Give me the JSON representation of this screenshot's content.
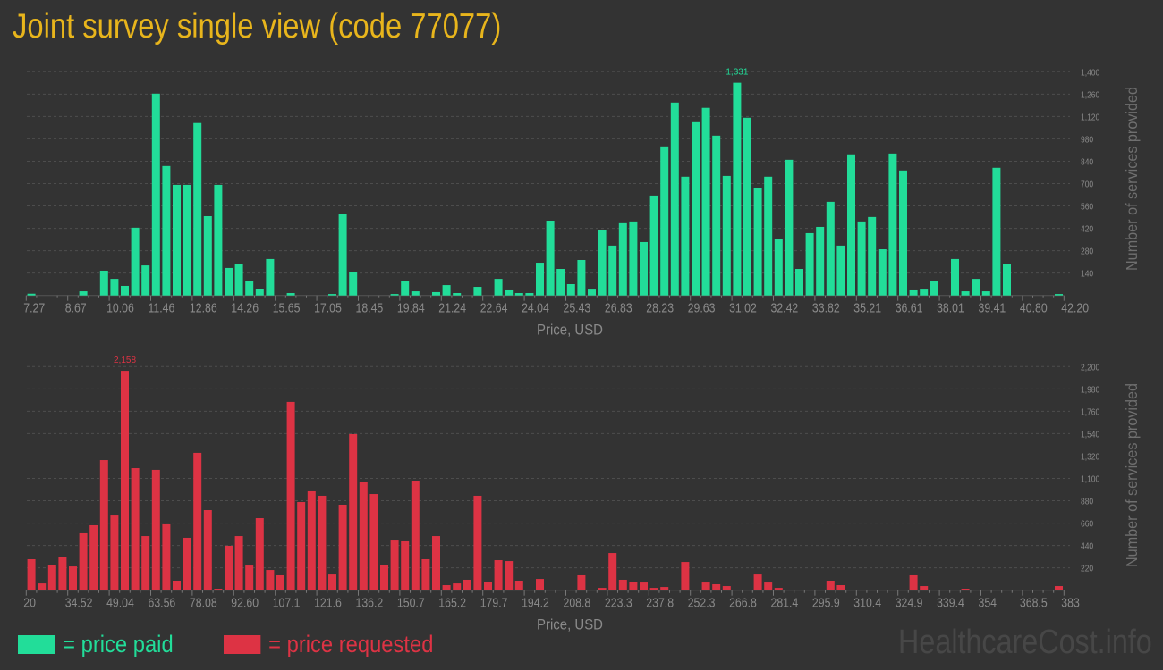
{
  "title": "Joint survey single view (code 77077)",
  "legend": [
    {
      "label": "= price paid",
      "color": "#22dd99"
    },
    {
      "label": "= price requested",
      "color": "#dd3344"
    }
  ],
  "watermark": "HealthcareCost.info",
  "chart_data": [
    {
      "type": "bar",
      "color": "#22dd99",
      "xlabel": "Price, USD",
      "ylabel": "Number of services provided",
      "xlim": [
        7.27,
        42.2
      ],
      "ylim": [
        0,
        1400
      ],
      "grid": true,
      "x_tick_labels": [
        "7.27",
        "8.67",
        "10.06",
        "11.46",
        "12.86",
        "14.26",
        "15.65",
        "17.05",
        "18.45",
        "19.84",
        "21.24",
        "22.64",
        "24.04",
        "25.43",
        "26.83",
        "28.23",
        "29.63",
        "31.02",
        "32.42",
        "33.82",
        "35.21",
        "36.61",
        "38.01",
        "39.41",
        "40.80",
        "42.20"
      ],
      "y_ticks": [
        140,
        280,
        420,
        560,
        700,
        840,
        980,
        1120,
        1260,
        1400
      ],
      "y_tick_labels": [
        "140",
        "280",
        "420",
        "560",
        "700",
        "840",
        "980",
        "1,120",
        "1,260",
        "1,400"
      ],
      "max_label": "1,331",
      "values": [
        11,
        0,
        0,
        0,
        0,
        26,
        0,
        155,
        104,
        60,
        424,
        188,
        1263,
        810,
        692,
        692,
        1079,
        496,
        692,
        172,
        194,
        88,
        43,
        228,
        0,
        15,
        0,
        0,
        0,
        9,
        508,
        144,
        0,
        0,
        0,
        9,
        93,
        26,
        0,
        21,
        65,
        15,
        0,
        54,
        0,
        104,
        32,
        15,
        15,
        205,
        468,
        166,
        71,
        222,
        37,
        407,
        312,
        452,
        463,
        334,
        625,
        933,
        1207,
        743,
        1084,
        1174,
        1000,
        748,
        1331,
        1112,
        670,
        743,
        351,
        849,
        166,
        390,
        429,
        586,
        312,
        883,
        463,
        491,
        289,
        888,
        782,
        32,
        37,
        93,
        0,
        228,
        26,
        104,
        26,
        799,
        194,
        0,
        0,
        0,
        0,
        9
      ]
    },
    {
      "type": "bar",
      "color": "#dd3344",
      "xlabel": "Price, USD",
      "ylabel": "Number of services provided",
      "xlim": [
        20,
        383
      ],
      "ylim": [
        0,
        2200
      ],
      "grid": true,
      "x_tick_labels": [
        "20",
        "34.52",
        "49.04",
        "63.56",
        "78.08",
        "92.60",
        "107.1",
        "121.6",
        "136.2",
        "150.7",
        "165.2",
        "179.7",
        "194.2",
        "208.8",
        "223.3",
        "237.8",
        "252.3",
        "266.8",
        "281.4",
        "295.9",
        "310.4",
        "324.9",
        "339.4",
        "354",
        "368.5",
        "383"
      ],
      "y_ticks": [
        220,
        440,
        660,
        880,
        1100,
        1320,
        1540,
        1760,
        1980,
        2200
      ],
      "y_tick_labels": [
        "220",
        "440",
        "660",
        "880",
        "1,100",
        "1,320",
        "1,540",
        "1,760",
        "1,980",
        "2,200"
      ],
      "max_label": "2,158",
      "values": [
        305,
        67,
        252,
        331,
        234,
        560,
        639,
        1280,
        735,
        2158,
        1201,
        533,
        1184,
        648,
        94,
        516,
        1351,
        788,
        15,
        437,
        533,
        243,
        709,
        199,
        147,
        1852,
        867,
        973,
        929,
        155,
        841,
        1535,
        1069,
        946,
        252,
        489,
        481,
        1078,
        305,
        533,
        50,
        67,
        103,
        929,
        85,
        296,
        287,
        94,
        0,
        111,
        0,
        0,
        0,
        147,
        0,
        23,
        366,
        103,
        85,
        76,
        23,
        32,
        0,
        278,
        0,
        76,
        59,
        41,
        0,
        0,
        155,
        76,
        23,
        0,
        0,
        0,
        0,
        94,
        50,
        0,
        0,
        0,
        0,
        0,
        0,
        147,
        41,
        0,
        0,
        0,
        15,
        0,
        0,
        0,
        0,
        0,
        0,
        0,
        0,
        41
      ]
    }
  ]
}
